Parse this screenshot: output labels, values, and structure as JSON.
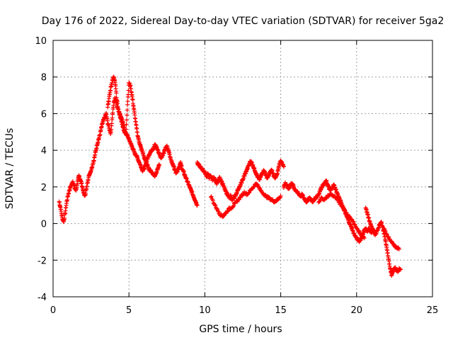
{
  "chart_data": {
    "type": "scatter",
    "title": "Day 176 of 2022, Sidereal Day-to-day VTEC variation (SDTVAR) for receiver 5ga2",
    "xlabel": "GPS time / hours",
    "ylabel": "SDTVAR / TECUs",
    "xlim": [
      0,
      25
    ],
    "ylim": [
      -4,
      10
    ],
    "xticks": [
      "0",
      "5",
      "10",
      "15",
      "20",
      "25"
    ],
    "yticks": [
      "-4",
      "-2",
      "0",
      "2",
      "4",
      "6",
      "8",
      "10"
    ],
    "xtick_values": [
      0,
      5,
      10,
      15,
      20,
      25
    ],
    "ytick_values": [
      -4,
      -2,
      0,
      2,
      4,
      6,
      8,
      10
    ],
    "grid": true,
    "marker": "plus",
    "series": [
      {
        "name": "SDTVAR",
        "color": "#ff0000",
        "segments": [
          {
            "x": [
              0.4,
              0.5,
              0.6,
              0.7,
              0.8,
              0.9,
              1.0,
              1.1,
              1.2,
              1.3,
              1.4,
              1.5,
              1.6,
              1.7,
              1.8,
              1.9,
              2.0,
              2.1,
              2.2,
              2.3,
              2.4,
              2.5,
              2.6,
              2.7,
              2.8,
              2.9,
              3.0,
              3.1,
              3.2,
              3.3,
              3.4,
              3.5,
              3.6,
              3.7,
              3.8,
              3.9,
              4.0,
              4.1,
              4.2,
              4.3,
              4.4,
              4.5,
              4.6,
              4.7,
              4.8,
              4.9,
              5.0,
              5.1,
              5.2,
              5.3,
              5.4,
              5.5,
              5.6,
              5.7,
              5.8,
              5.9,
              6.0,
              6.1,
              6.2,
              6.3,
              6.4,
              6.5,
              6.6,
              6.7,
              6.8,
              6.9,
              7.0,
              7.1,
              7.2,
              7.3,
              7.4,
              7.5,
              7.6,
              7.7,
              7.8,
              7.9,
              8.0,
              8.1,
              8.2,
              8.3,
              8.4,
              8.5,
              8.6,
              8.7,
              8.8,
              8.9,
              9.0,
              9.1,
              9.2,
              9.3,
              9.4,
              9.5
            ],
            "y": [
              1.2,
              0.8,
              0.3,
              0.1,
              0.6,
              1.2,
              1.6,
              1.9,
              2.1,
              2.3,
              2.0,
              1.8,
              2.2,
              2.6,
              2.4,
              2.1,
              1.7,
              1.5,
              1.9,
              2.4,
              2.7,
              2.9,
              3.2,
              3.5,
              3.9,
              4.3,
              4.6,
              4.9,
              5.3,
              5.6,
              5.8,
              6.0,
              5.5,
              5.2,
              4.9,
              5.8,
              6.6,
              6.9,
              6.5,
              6.2,
              6.0,
              5.8,
              5.5,
              5.1,
              4.9,
              4.8,
              4.6,
              4.4,
              4.2,
              4.0,
              3.8,
              3.7,
              3.5,
              3.3,
              3.1,
              2.9,
              3.0,
              3.2,
              3.5,
              3.7,
              3.9,
              4.0,
              4.1,
              4.3,
              4.2,
              4.0,
              3.8,
              3.6,
              3.7,
              3.9,
              4.1,
              4.2,
              4.0,
              3.7,
              3.4,
              3.2,
              3.0,
              2.8,
              2.9,
              3.1,
              3.3,
              3.0,
              2.8,
              2.6,
              2.4,
              2.2,
              2.0,
              1.8,
              1.6,
              1.4,
              1.2,
              1.0
            ]
          },
          {
            "x": [
              3.6,
              3.7,
              3.8,
              3.9,
              4.0,
              4.1,
              4.2,
              4.3,
              4.4,
              4.5,
              4.6,
              4.7,
              4.8,
              4.9,
              5.0,
              5.1,
              5.2,
              5.3,
              5.4,
              5.5,
              5.6,
              5.7,
              5.8,
              5.9,
              6.0,
              6.1,
              6.2,
              6.3,
              6.4,
              6.5,
              6.6,
              6.7,
              6.8,
              6.9,
              7.0
            ],
            "y": [
              6.4,
              6.9,
              7.4,
              7.8,
              8.0,
              7.6,
              6.8,
              6.2,
              5.9,
              5.6,
              5.3,
              5.0,
              4.9,
              6.5,
              7.7,
              7.5,
              7.0,
              6.4,
              5.8,
              5.2,
              4.7,
              4.4,
              4.1,
              3.9,
              3.6,
              3.4,
              3.2,
              3.0,
              2.9,
              2.8,
              2.7,
              2.6,
              2.8,
              3.0,
              3.2
            ]
          },
          {
            "x": [
              9.5,
              9.6,
              9.7,
              9.8,
              9.9,
              10.0,
              10.1,
              10.2,
              10.3,
              10.4,
              10.5,
              10.6,
              10.7,
              10.8,
              10.9,
              11.0,
              11.1,
              11.2,
              11.3,
              11.4,
              11.5,
              11.6,
              11.7,
              11.8,
              11.9,
              12.0,
              12.1,
              12.2,
              12.3,
              12.4,
              12.5,
              12.6,
              12.7,
              12.8,
              12.9,
              13.0,
              13.1,
              13.2,
              13.3,
              13.4,
              13.5,
              13.6,
              13.7,
              13.8,
              13.9,
              14.0,
              14.1,
              14.2,
              14.3,
              14.4,
              14.5,
              14.6,
              14.7,
              14.8,
              14.9,
              15.0,
              15.1,
              15.2
            ],
            "y": [
              3.3,
              3.2,
              3.1,
              3.0,
              2.9,
              2.8,
              2.6,
              2.7,
              2.5,
              2.6,
              2.4,
              2.5,
              2.3,
              2.2,
              2.4,
              2.5,
              2.3,
              2.1,
              1.9,
              1.7,
              1.6,
              1.4,
              1.5,
              1.3,
              1.4,
              1.5,
              1.7,
              1.9,
              2.0,
              2.2,
              2.4,
              2.6,
              2.8,
              3.0,
              3.2,
              3.4,
              3.3,
              3.1,
              2.9,
              2.7,
              2.5,
              2.4,
              2.6,
              2.8,
              2.9,
              2.7,
              2.5,
              2.6,
              2.8,
              2.9,
              2.7,
              2.5,
              2.6,
              2.8,
              3.2,
              3.4,
              3.3,
              3.1
            ]
          },
          {
            "x": [
              10.4,
              10.6,
              10.8,
              11.0,
              11.2,
              11.4,
              11.6,
              11.8,
              12.0,
              12.2,
              12.4,
              12.6,
              12.8,
              13.0,
              13.2,
              13.4,
              13.6,
              13.8,
              14.0,
              14.2,
              14.4,
              14.6,
              14.8,
              15.0
            ],
            "y": [
              1.5,
              1.1,
              0.8,
              0.5,
              0.4,
              0.6,
              0.8,
              0.9,
              1.1,
              1.3,
              1.5,
              1.7,
              1.6,
              1.8,
              2.0,
              2.2,
              1.9,
              1.7,
              1.5,
              1.4,
              1.3,
              1.2,
              1.3,
              1.5
            ]
          },
          {
            "x": [
              15.2,
              15.3,
              15.4,
              15.5,
              15.6,
              15.7,
              15.8,
              15.9,
              16.0,
              16.1,
              16.2,
              16.3,
              16.4,
              16.5,
              16.6,
              16.7,
              16.8,
              16.9,
              17.0,
              17.1,
              17.2,
              17.3,
              17.4,
              17.5,
              17.6,
              17.7,
              17.8,
              17.9,
              18.0,
              18.1,
              18.2,
              18.3,
              18.4,
              18.5,
              18.6,
              18.7,
              18.8,
              18.9,
              19.0,
              19.1,
              19.2,
              19.3,
              19.4,
              19.5,
              19.6,
              19.7,
              19.8,
              19.9,
              20.0,
              20.1,
              20.2,
              20.3,
              20.4,
              20.5,
              20.6,
              20.7,
              20.8,
              20.9,
              21.0
            ],
            "y": [
              2.0,
              2.2,
              2.1,
              1.9,
              2.0,
              2.2,
              2.1,
              1.9,
              1.8,
              1.7,
              1.6,
              1.5,
              1.6,
              1.4,
              1.3,
              1.2,
              1.3,
              1.4,
              1.3,
              1.2,
              1.3,
              1.4,
              1.5,
              1.6,
              1.8,
              2.0,
              2.1,
              2.2,
              2.3,
              2.1,
              1.9,
              1.8,
              2.0,
              2.1,
              1.9,
              1.7,
              1.5,
              1.3,
              1.1,
              0.9,
              0.7,
              0.5,
              0.3,
              0.1,
              -0.1,
              -0.3,
              -0.5,
              -0.7,
              -0.8,
              -0.9,
              -1.0,
              -0.8,
              -0.6,
              -0.4,
              -0.3,
              -0.4,
              -0.3,
              -0.4,
              -0.5
            ]
          },
          {
            "x": [
              17.5,
              17.7,
              17.9,
              18.1,
              18.3,
              18.5,
              18.7,
              18.9,
              19.1,
              19.3,
              19.5,
              19.7,
              19.9,
              20.1,
              20.3,
              20.5
            ],
            "y": [
              1.2,
              1.4,
              1.3,
              1.5,
              1.6,
              1.5,
              1.3,
              1.1,
              0.9,
              0.6,
              0.4,
              0.2,
              -0.1,
              -0.4,
              -0.6,
              -0.8
            ]
          },
          {
            "x": [
              20.6,
              20.7,
              20.8,
              20.9,
              21.0,
              21.1,
              21.2,
              21.3,
              21.4,
              21.5,
              21.6,
              21.7,
              21.8,
              21.9,
              22.0,
              22.1,
              22.2,
              22.3,
              22.4,
              22.5,
              22.6,
              22.7,
              22.8,
              22.9
            ],
            "y": [
              0.9,
              0.6,
              0.3,
              0.0,
              -0.2,
              -0.4,
              -0.6,
              -0.5,
              -0.3,
              -0.1,
              0.1,
              -0.1,
              -0.5,
              -0.9,
              -1.4,
              -1.9,
              -2.4,
              -2.8,
              -2.6,
              -2.4,
              -2.5,
              -2.6,
              -2.5,
              -2.5
            ]
          },
          {
            "x": [
              21.8,
              22.0,
              22.2,
              22.4,
              22.6,
              22.8
            ],
            "y": [
              -0.3,
              -0.6,
              -0.9,
              -1.1,
              -1.3,
              -1.4
            ]
          }
        ]
      }
    ]
  }
}
